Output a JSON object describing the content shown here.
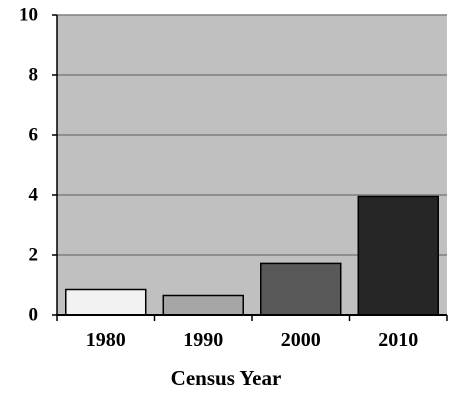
{
  "chart_data": {
    "type": "bar",
    "categories": [
      "1980",
      "1990",
      "2000",
      "2010"
    ],
    "values": [
      0.85,
      0.65,
      1.72,
      3.95
    ],
    "title": "",
    "xlabel": "Census Year",
    "ylabel": "",
    "ylim": [
      0,
      10
    ],
    "yticks": [
      "0",
      "2",
      "4",
      "6",
      "8",
      "10"
    ],
    "grid": true,
    "legend": "none"
  },
  "style": {
    "plot_background": "#c0c0c0",
    "gridline_color": "#7f7f7f",
    "axis_color": "#000000",
    "bar_colors": [
      "#f2f2f2",
      "#a6a6a6",
      "#595959",
      "#262626"
    ],
    "bar_edge_color": "#000000"
  }
}
